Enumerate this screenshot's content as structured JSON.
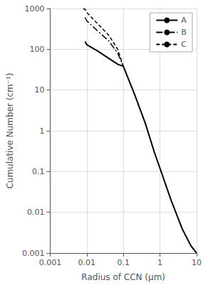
{
  "chart_data": {
    "type": "line",
    "xlabel": "Radius of CCN (μm)",
    "ylabel": "Cumulative Number (cm⁻¹)",
    "log": true,
    "grid": true,
    "legend": "upper right",
    "xlim": [
      0.001,
      10
    ],
    "ylim": [
      0.001,
      1000
    ],
    "xticks": [
      0.001,
      0.01,
      0.1,
      1,
      10
    ],
    "yticks": [
      0.001,
      0.01,
      0.1,
      1,
      10,
      100,
      1000
    ],
    "series": [
      {
        "name": "A",
        "color": "#000000",
        "line_style": "solid",
        "x": [
          0.009,
          0.01,
          0.02,
          0.04,
          0.07,
          0.1,
          0.2,
          0.4,
          0.7,
          1.0,
          2.0,
          4.0,
          7.0,
          10.0
        ],
        "values": [
          155,
          130,
          90,
          60,
          43,
          38,
          8.0,
          1.5,
          0.3,
          0.12,
          0.02,
          0.004,
          0.0015,
          0.001
        ]
      },
      {
        "name": "B",
        "color": "#000000",
        "line_style": "dashdot",
        "x": [
          0.009,
          0.01,
          0.02,
          0.04,
          0.07,
          0.1
        ],
        "values": [
          600,
          500,
          280,
          160,
          80,
          38
        ]
      },
      {
        "name": "C",
        "color": "#000000",
        "line_style": "dashed",
        "x": [
          0.008,
          0.009,
          0.01,
          0.02,
          0.04,
          0.07,
          0.1
        ],
        "values": [
          1000,
          950,
          800,
          420,
          220,
          100,
          38
        ]
      }
    ]
  }
}
